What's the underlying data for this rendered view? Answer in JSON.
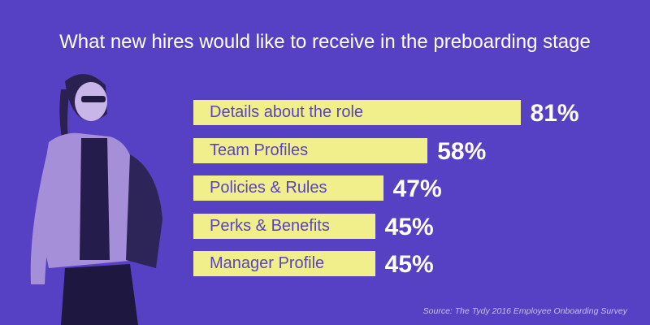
{
  "chart_data": {
    "type": "bar",
    "orientation": "horizontal",
    "title": "What new hires would like to receive in the preboarding stage",
    "categories": [
      "Details about the role",
      "Team Profiles",
      "Policies & Rules",
      "Perks & Benefits",
      "Manager Profile"
    ],
    "values": [
      81,
      58,
      47,
      45,
      45
    ],
    "value_labels": [
      "81%",
      "58%",
      "47%",
      "45%",
      "45%"
    ],
    "unit": "%",
    "xlim": [
      0,
      100
    ],
    "grid": false,
    "source": "Source: The Tydy 2016 Employee Onboarding Survey"
  },
  "colors": {
    "background": "#5641c4",
    "bar": "#f1ef8b",
    "bar_label": "#5a44bd",
    "value": "#ffffff"
  },
  "illustration": "woman-with-bag-photo"
}
